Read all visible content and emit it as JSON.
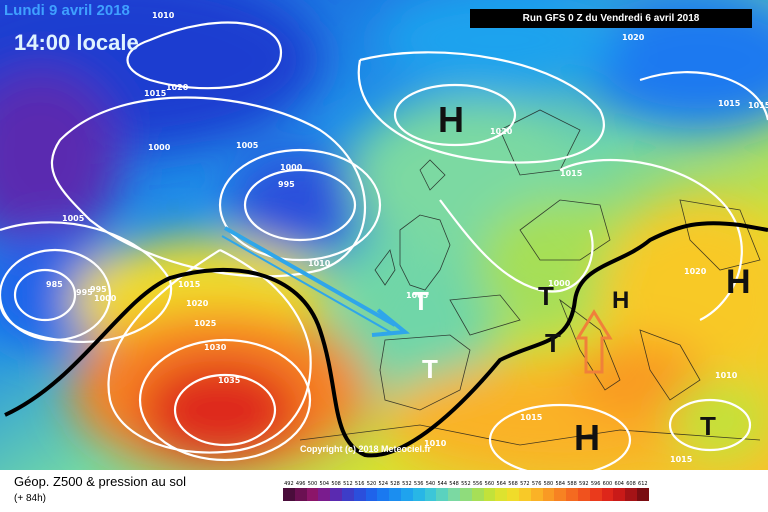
{
  "header": {
    "date": "Lundi 9 avril 2018",
    "time": "14:00 locale",
    "run": "Run GFS 0 Z du Vendredi 6 avril 2018"
  },
  "copyright": "Copyright (c) 2018 Meteociel.fr",
  "pressure_centers": [
    {
      "type": "H",
      "name": "high-north-atlantic"
    },
    {
      "type": "H",
      "name": "high-eastern-europe"
    },
    {
      "type": "H",
      "name": "high-central-europe"
    },
    {
      "type": "H",
      "name": "high-mediterranean"
    },
    {
      "type": "T",
      "name": "low-bay-of-biscay"
    },
    {
      "type": "T",
      "name": "low-iberia"
    },
    {
      "type": "T",
      "name": "low-france"
    },
    {
      "type": "T",
      "name": "low-alps"
    },
    {
      "type": "T",
      "name": "low-balkans"
    }
  ],
  "isobar_labels": [
    "1010",
    "1020",
    "1020",
    "1015",
    "1000",
    "1005",
    "1000",
    "995",
    "1020",
    "1015",
    "1015",
    "1005",
    "1010",
    "985",
    "995",
    "995",
    "1000",
    "1015",
    "1020",
    "1025",
    "1030",
    "1035",
    "1005",
    "1000",
    "1020",
    "1015",
    "1010",
    "1015",
    "1010",
    "1015"
  ],
  "legend": {
    "title": "Géop. Z500 & pression au sol",
    "subtitle": "(+ 84h)",
    "values": [
      "492",
      "496",
      "500",
      "504",
      "508",
      "512",
      "516",
      "520",
      "524",
      "528",
      "532",
      "536",
      "540",
      "544",
      "548",
      "552",
      "556",
      "560",
      "564",
      "568",
      "572",
      "576",
      "580",
      "584",
      "588",
      "592",
      "596",
      "600",
      "604",
      "608",
      "612"
    ],
    "colors": [
      "#4a0d3b",
      "#6b1052",
      "#8c1569",
      "#7a1c8e",
      "#5a2ab0",
      "#3d3dc8",
      "#2b4fdc",
      "#1f63ea",
      "#1a79f0",
      "#1b8ef0",
      "#1fa3ee",
      "#28b6e6",
      "#3cc6d8",
      "#5ad2bf",
      "#7bd9a2",
      "#8fdc7c",
      "#a6df57",
      "#c2e23a",
      "#dde22f",
      "#f0dc2a",
      "#f8c928",
      "#fab226",
      "#f99a24",
      "#f78222",
      "#f46a20",
      "#f0521e",
      "#ea3a1c",
      "#de261a",
      "#c91a18",
      "#a51316",
      "#7a0d12"
    ]
  },
  "colors": {
    "isobar": "#ffffff",
    "front": "#000000",
    "arrow_blue": "#2fa6ea",
    "arrow_orange": "#f0803a"
  }
}
